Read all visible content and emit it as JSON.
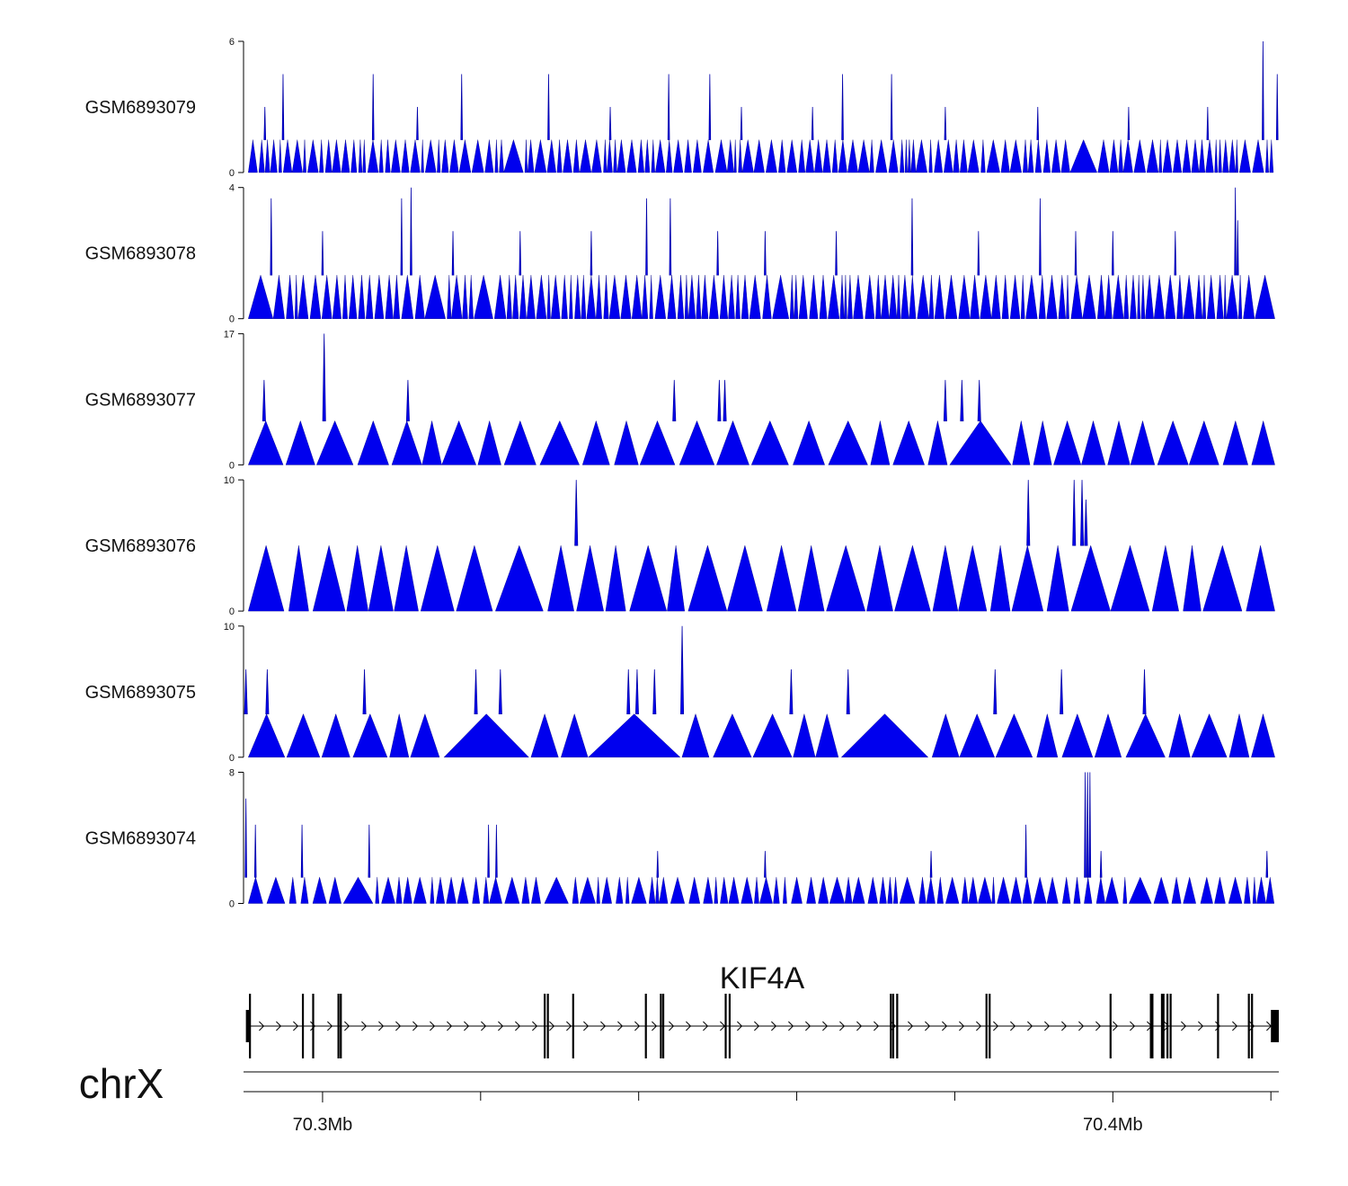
{
  "chart_data": {
    "type": "area",
    "title": "",
    "genome_region": {
      "chromosome": "chrX",
      "start_mb": 70.29,
      "end_mb": 70.421
    },
    "x_axis": {
      "unit": "Mb",
      "ticks": [
        {
          "value": 70.3,
          "label": "70.3Mb"
        },
        {
          "value": 70.4,
          "label": "70.4Mb"
        }
      ],
      "minor_ticks": [
        70.32,
        70.34,
        70.36,
        70.38,
        70.42
      ]
    },
    "series_color": "#0000ee",
    "tracks": [
      {
        "name": "GSM6893079",
        "ymin": 0,
        "ymax": 6,
        "ymax_label": "6",
        "ymin_label": "0",
        "pattern": "dense",
        "base": 1.5,
        "peaks": [
          [
            70.2927,
            3
          ],
          [
            70.295,
            4.5
          ],
          [
            70.3064,
            4.5
          ],
          [
            70.312,
            3
          ],
          [
            70.3176,
            4.5
          ],
          [
            70.3286,
            4.5
          ],
          [
            70.3364,
            3
          ],
          [
            70.3438,
            4.5
          ],
          [
            70.349,
            4.5
          ],
          [
            70.353,
            3
          ],
          [
            70.362,
            3
          ],
          [
            70.3658,
            4.5
          ],
          [
            70.372,
            4.5
          ],
          [
            70.3788,
            3
          ],
          [
            70.3905,
            3
          ],
          [
            70.402,
            3
          ],
          [
            70.412,
            3
          ],
          [
            70.419,
            6
          ],
          [
            70.4208,
            4.5
          ]
        ]
      },
      {
        "name": "GSM6893078",
        "ymin": 0,
        "ymax": 4,
        "ymax_label": "4",
        "ymin_label": "0",
        "pattern": "dense",
        "base": 1.33,
        "peaks": [
          [
            70.2935,
            3.67
          ],
          [
            70.3,
            2.67
          ],
          [
            70.31,
            3.67
          ],
          [
            70.3112,
            4
          ],
          [
            70.3165,
            2.67
          ],
          [
            70.325,
            2.67
          ],
          [
            70.334,
            2.67
          ],
          [
            70.341,
            3.67
          ],
          [
            70.344,
            3.67
          ],
          [
            70.35,
            2.67
          ],
          [
            70.356,
            2.67
          ],
          [
            70.365,
            2.67
          ],
          [
            70.3746,
            3.67
          ],
          [
            70.383,
            2.67
          ],
          [
            70.3908,
            3.67
          ],
          [
            70.3953,
            2.67
          ],
          [
            70.4,
            2.67
          ],
          [
            70.4079,
            2.67
          ],
          [
            70.4155,
            4
          ],
          [
            70.4158,
            3
          ]
        ]
      },
      {
        "name": "GSM6893077",
        "ymin": 0,
        "ymax": 17,
        "ymax_label": "17",
        "ymin_label": "0",
        "pattern": "sparse",
        "base": 5.7,
        "peaks": [
          [
            70.2926,
            11
          ],
          [
            70.3002,
            17
          ],
          [
            70.3108,
            11
          ],
          [
            70.3445,
            11
          ],
          [
            70.3502,
            11
          ],
          [
            70.3509,
            11
          ],
          [
            70.3788,
            11
          ],
          [
            70.3809,
            11
          ],
          [
            70.3831,
            11
          ]
        ]
      },
      {
        "name": "GSM6893076",
        "ymin": 0,
        "ymax": 10,
        "ymax_label": "10",
        "ymin_label": "0",
        "pattern": "sparse",
        "base": 5,
        "peaks": [
          [
            70.3321,
            10
          ],
          [
            70.3893,
            10
          ],
          [
            70.3951,
            10
          ],
          [
            70.3961,
            10
          ],
          [
            70.3966,
            8.5
          ]
        ]
      },
      {
        "name": "GSM6893075",
        "ymin": 0,
        "ymax": 10,
        "ymax_label": "10",
        "ymin_label": "0",
        "pattern": "sparse",
        "base": 3.3,
        "peaks": [
          [
            70.2903,
            6.7
          ],
          [
            70.293,
            6.7
          ],
          [
            70.3053,
            6.7
          ],
          [
            70.3194,
            6.7
          ],
          [
            70.3225,
            6.7
          ],
          [
            70.3387,
            6.7
          ],
          [
            70.3398,
            6.7
          ],
          [
            70.342,
            6.7
          ],
          [
            70.3455,
            10
          ],
          [
            70.3593,
            6.7
          ],
          [
            70.3665,
            6.7
          ],
          [
            70.3851,
            6.7
          ],
          [
            70.3935,
            6.7
          ],
          [
            70.404,
            6.7
          ]
        ]
      },
      {
        "name": "GSM6893074",
        "ymin": 0,
        "ymax": 8,
        "ymax_label": "8",
        "ymin_label": "0",
        "pattern": "mixed",
        "base": 1.6,
        "peaks": [
          [
            70.2903,
            6.4
          ],
          [
            70.2915,
            4.8
          ],
          [
            70.2974,
            4.8
          ],
          [
            70.3059,
            4.8
          ],
          [
            70.321,
            4.8
          ],
          [
            70.322,
            4.8
          ],
          [
            70.3424,
            3.2
          ],
          [
            70.356,
            3.2
          ],
          [
            70.377,
            3.2
          ],
          [
            70.389,
            4.8
          ],
          [
            70.3965,
            8
          ],
          [
            70.3968,
            8
          ],
          [
            70.3971,
            8
          ],
          [
            70.3985,
            3.2
          ],
          [
            70.4195,
            3.2
          ]
        ]
      }
    ],
    "gene": {
      "name": "KIF4A",
      "strand": "+",
      "start_mb": 70.2905,
      "end_mb": 70.421,
      "exons_mb": [
        70.2908,
        70.2975,
        70.2988,
        70.302,
        70.3023,
        70.3281,
        70.3285,
        70.3317,
        70.3409,
        70.3428,
        70.3431,
        70.351,
        70.3515,
        70.3719,
        70.3722,
        70.3727,
        70.384,
        70.3844,
        70.3997,
        70.4048,
        70.405,
        70.4062,
        70.4064,
        70.4069,
        70.4073,
        70.4133,
        70.4172,
        70.4176
      ],
      "utr_mb": [
        [
          70.2903,
          70.2908
        ],
        [
          70.42,
          70.421
        ]
      ]
    },
    "chromosome_label": "chrX"
  }
}
